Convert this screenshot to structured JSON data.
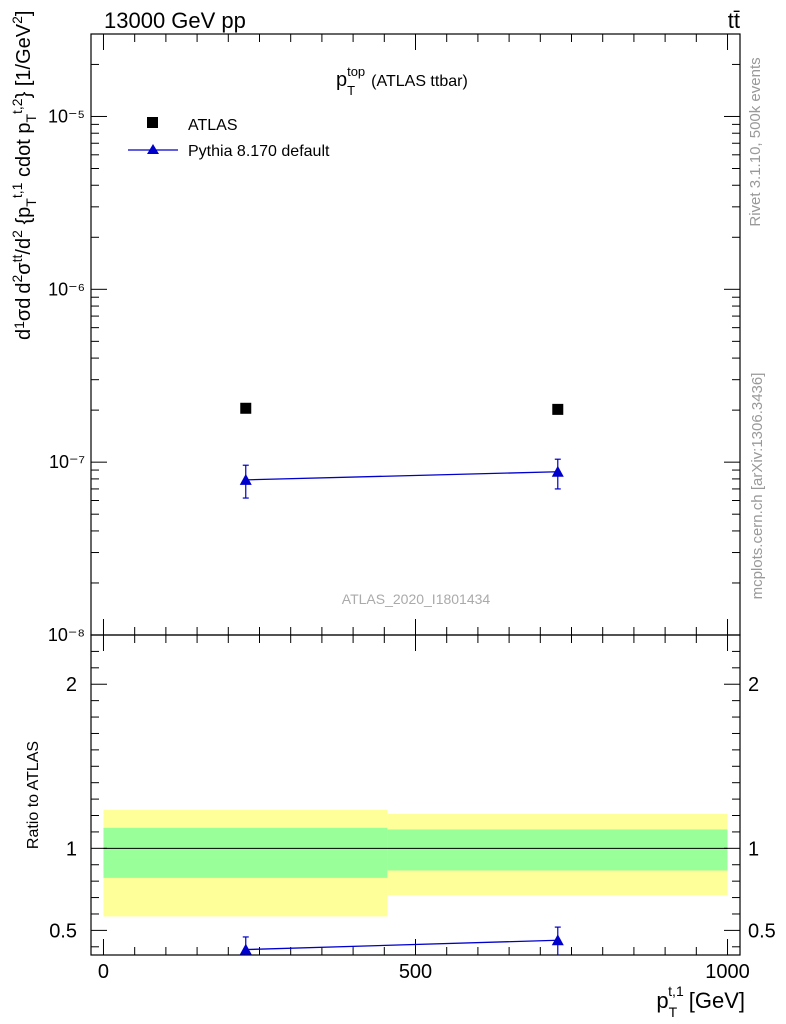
{
  "header": {
    "left_label": "13000 GeV pp",
    "right_label": "tt̄"
  },
  "side_labels": {
    "rivet": "Rivet 3.1.10,  500k events",
    "mcplots": "mcplots.cern.ch [arXiv:1306.3436]"
  },
  "watermark": "ATLAS_2020_I1801434",
  "chart_data": [
    {
      "type": "scatter",
      "title": "p_T^top (ATLAS ttbar)",
      "title_main": "p",
      "title_sub": "T",
      "title_sup": "top",
      "title_suffix": "(ATLAS ttbar)",
      "yscale": "log",
      "ylim": [
        1e-08,
        3e-05
      ],
      "xlim": [
        -20,
        1020
      ],
      "ylabel": "d1/σdd^2σ^{tt}/d^2{p_T^{t,1} cdot p_T^{t,2}} [1/GeV^2]",
      "y_tick_labels": [
        "10⁻⁵",
        "10⁻⁶",
        "10⁻⁷",
        "10⁻⁸"
      ],
      "y_tick_values": [
        1e-05,
        1e-06,
        1e-07,
        1e-08
      ],
      "legend_position": "top-left",
      "series": [
        {
          "name": "ATLAS",
          "marker": "square",
          "color": "#000000",
          "x": [
            228,
            728
          ],
          "y": [
            2.05e-07,
            2.02e-07
          ]
        },
        {
          "name": "Pythia 8.170 default",
          "marker": "triangle",
          "color": "#0000cc",
          "x": [
            228,
            728
          ],
          "y": [
            7.9e-08,
            8.8e-08
          ],
          "yerr_low": [
            6.2e-08,
            7e-08
          ],
          "yerr_high": [
            9.6e-08,
            1.04e-07
          ]
        }
      ]
    },
    {
      "type": "scatter",
      "ylabel": "Ratio to ATLAS",
      "xlabel": "p_T^{t,1} [GeV]",
      "xlabel_main": "p",
      "xlabel_sub": "T",
      "xlabel_sup": "t,1",
      "xlabel_suffix": "[GeV]",
      "ylim": [
        0.35,
        2.3
      ],
      "xlim": [
        -20,
        1020
      ],
      "x_tick_values": [
        0,
        500,
        1000
      ],
      "x_tick_labels": [
        "0",
        "500",
        "1000"
      ],
      "y_tick_values": [
        0.5,
        1,
        2
      ],
      "y_tick_labels": [
        "0.5",
        "1",
        "2"
      ],
      "bands": [
        {
          "x0": 0,
          "x1": 455,
          "yellow": [
            0.585,
            1.235
          ],
          "green": [
            0.82,
            1.125
          ]
        },
        {
          "x0": 455,
          "x1": 1000,
          "yellow": [
            0.715,
            1.21
          ],
          "green": [
            0.865,
            1.115
          ]
        }
      ],
      "band_colors": {
        "yellow": "#ffff99",
        "green": "#99ff99"
      },
      "series": [
        {
          "name": "Pythia 8.170 default",
          "color": "#0000cc",
          "x": [
            228,
            728
          ],
          "y": [
            0.383,
            0.44
          ],
          "yerr_low": [
            0.3,
            0.35
          ],
          "yerr_high": [
            0.46,
            0.52
          ]
        }
      ]
    }
  ]
}
